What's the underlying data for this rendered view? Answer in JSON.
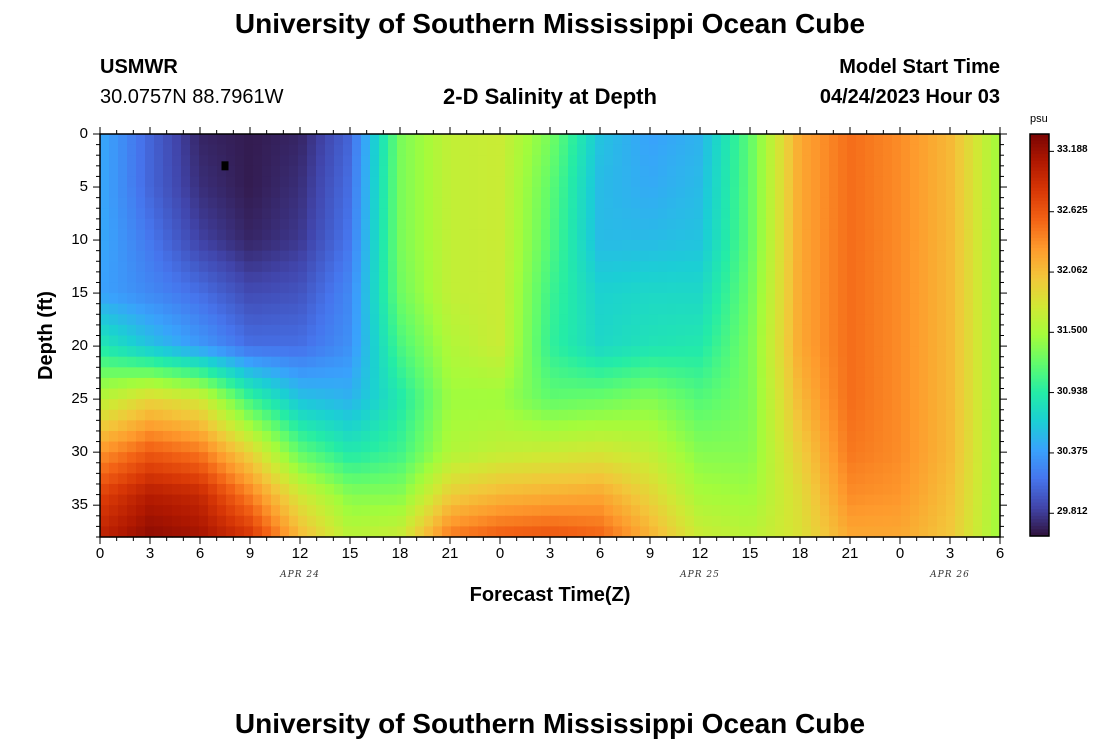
{
  "page": {
    "title": "University of Southern Mississippi Ocean Cube",
    "station_name": "USMWR",
    "coordinates": "30.0757N  88.7961W",
    "chart_subtitle": "2-D Salinity at Depth",
    "model_label": "Model Start Time",
    "model_time": "04/24/2023 Hour 03",
    "footer_title": "University of Southern Mississippi Ocean Cube"
  },
  "colors": {
    "ramp": [
      "#30123b",
      "#4145ab",
      "#4675ed",
      "#39a2fc",
      "#1bcfd4",
      "#24eca6",
      "#61fc6c",
      "#a4fc3b",
      "#d1e834",
      "#f3c63a",
      "#fe9b2d",
      "#f36315",
      "#d93806",
      "#b11901",
      "#7a0403"
    ]
  },
  "chart_data": {
    "type": "heatmap",
    "title": "2-D Salinity at Depth",
    "xlabel": "Forecast Time(Z)",
    "ylabel": "Depth (ft)",
    "x_tick_labels": [
      "0",
      "3",
      "6",
      "9",
      "12",
      "15",
      "18",
      "21",
      "0",
      "3",
      "6",
      "9",
      "12",
      "15",
      "18",
      "21",
      "0",
      "3",
      "6"
    ],
    "x_range_hours": [
      0,
      54
    ],
    "date_labels": [
      {
        "text": "APR 24",
        "hour": 12
      },
      {
        "text": "APR 25",
        "hour": 36
      },
      {
        "text": "APR 26",
        "hour": 51
      }
    ],
    "y_tick_labels": [
      "0",
      "5",
      "10",
      "15",
      "20",
      "25",
      "30",
      "35"
    ],
    "y_range_ft": [
      0,
      38
    ],
    "colorbar": {
      "unit": "psu",
      "min": 29.6,
      "max": 33.35,
      "tick_labels": [
        "33.188",
        "32.625",
        "32.062",
        "31.500",
        "30.938",
        "30.375",
        "29.812"
      ]
    },
    "time_hours": [
      0,
      3,
      6,
      9,
      12,
      15,
      18,
      21,
      24,
      27,
      30,
      33,
      36,
      39,
      42,
      45,
      48,
      51,
      54
    ],
    "profiles": [
      {
        "depth_ft": 0,
        "values": [
          30.45,
          30.05,
          29.7,
          29.65,
          29.7,
          30.05,
          31.3,
          31.65,
          31.7,
          31.3,
          30.6,
          30.4,
          30.5,
          31.2,
          32.2,
          32.5,
          32.35,
          32.1,
          31.45
        ]
      },
      {
        "depth_ft": 5,
        "values": [
          30.45,
          30.05,
          29.75,
          29.65,
          29.75,
          30.1,
          31.3,
          31.65,
          31.7,
          31.2,
          30.55,
          30.45,
          30.55,
          31.2,
          32.2,
          32.5,
          32.35,
          32.1,
          31.45
        ]
      },
      {
        "depth_ft": 10,
        "values": [
          30.45,
          30.15,
          29.85,
          29.7,
          29.8,
          30.15,
          31.3,
          31.65,
          31.7,
          31.15,
          30.55,
          30.55,
          30.6,
          31.2,
          32.2,
          32.5,
          32.35,
          32.1,
          31.45
        ]
      },
      {
        "depth_ft": 15,
        "values": [
          30.4,
          30.25,
          30.1,
          29.9,
          29.95,
          30.25,
          31.25,
          31.65,
          31.7,
          31.05,
          30.7,
          30.75,
          30.75,
          31.25,
          32.2,
          32.5,
          32.35,
          32.1,
          31.45
        ]
      },
      {
        "depth_ft": 20,
        "values": [
          30.9,
          30.6,
          30.35,
          30.1,
          30.1,
          30.3,
          31.1,
          31.55,
          31.7,
          31.0,
          30.75,
          30.85,
          30.9,
          31.3,
          32.2,
          32.5,
          32.35,
          32.1,
          31.45
        ]
      },
      {
        "depth_ft": 25,
        "values": [
          31.6,
          31.9,
          31.75,
          31.05,
          30.6,
          30.5,
          30.9,
          31.45,
          31.45,
          31.2,
          31.25,
          31.35,
          31.15,
          31.3,
          32.1,
          32.5,
          32.35,
          32.1,
          31.45
        ]
      },
      {
        "depth_ft": 30,
        "values": [
          32.3,
          32.6,
          32.45,
          31.9,
          31.2,
          30.9,
          31.05,
          31.55,
          31.65,
          31.7,
          31.75,
          31.65,
          31.35,
          31.35,
          31.95,
          32.45,
          32.35,
          32.1,
          31.45
        ]
      },
      {
        "depth_ft": 34,
        "values": [
          32.75,
          33.05,
          32.95,
          32.4,
          31.75,
          31.35,
          31.35,
          31.95,
          32.1,
          32.15,
          32.2,
          31.9,
          31.5,
          31.45,
          31.85,
          32.35,
          32.3,
          32.05,
          31.45
        ]
      },
      {
        "depth_ft": 38,
        "values": [
          33.0,
          33.25,
          33.15,
          32.85,
          32.1,
          31.6,
          31.7,
          32.45,
          32.6,
          32.65,
          32.55,
          32.15,
          31.7,
          31.6,
          31.8,
          32.2,
          32.2,
          32.0,
          31.45
        ]
      }
    ],
    "annotations": [
      {
        "type": "marker",
        "hour": 7.5,
        "depth_ft": 3,
        "color": "#000000"
      }
    ]
  }
}
